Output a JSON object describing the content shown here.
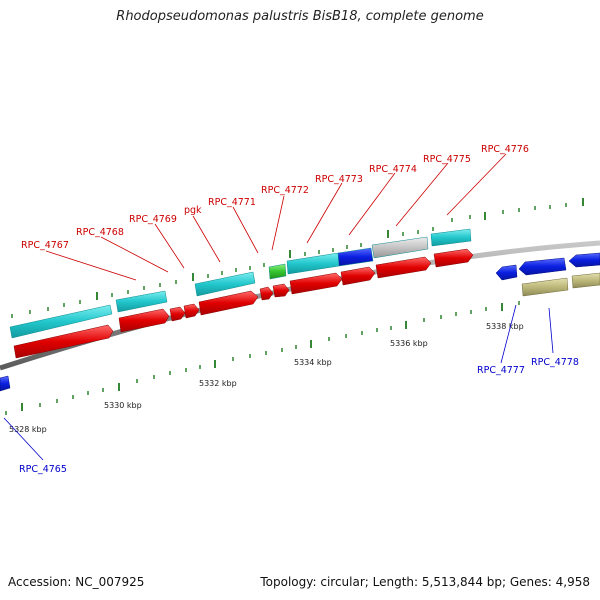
{
  "title": "Rhodopseudomonas palustris BisB18, complete genome",
  "footer": {
    "accession": "Accession: NC_007925",
    "summary": "Topology: circular; Length: 5,513,844 bp; Genes: 4,958"
  },
  "colors": {
    "backbone": "#8c8c8c",
    "tick": "#1f7a1f",
    "label_forward": "#cc0000",
    "label_reverse": "#0000cc",
    "cyan": "#22c7cc",
    "red": "#e00000",
    "blue": "#0a1fe0",
    "green": "#35c52e",
    "gray": "#c4c4c4",
    "olive": "#bdb87a"
  },
  "scale_labels": [
    "5328 kbp",
    "5330 kbp",
    "5332 kbp",
    "5334 kbp",
    "5336 kbp",
    "5338 kbp"
  ],
  "forward_genes": [
    "RPC_4767",
    "RPC_4768",
    "RPC_4769",
    "pgk",
    "RPC_4771",
    "RPC_4772",
    "RPC_4773",
    "RPC_4774",
    "RPC_4775",
    "RPC_4776"
  ],
  "reverse_genes": [
    "RPC_4765",
    "RPC_4777",
    "RPC_4778"
  ]
}
